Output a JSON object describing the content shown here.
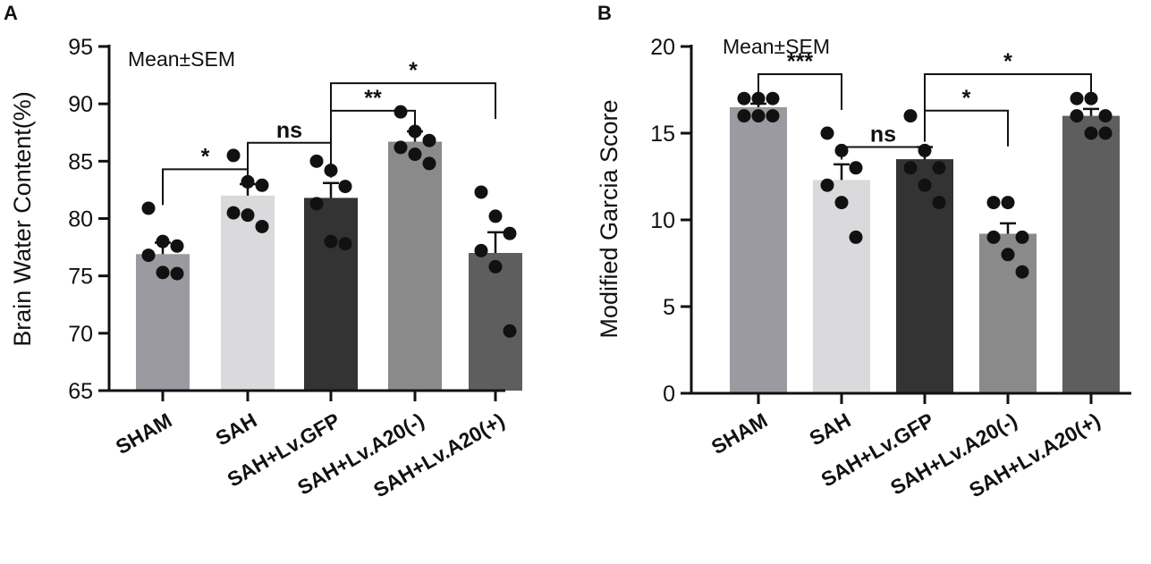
{
  "chart_data": [
    {
      "panel_label": "A",
      "type": "bar",
      "title": "",
      "annotation": "Mean±SEM",
      "xlabel": "",
      "ylabel": "Brain Water Content(%)",
      "ylim": [
        65,
        95
      ],
      "yticks": [
        65,
        70,
        75,
        80,
        85,
        90,
        95
      ],
      "categories": [
        "SHAM",
        "SAH",
        "SAH+Lv.GFP",
        "SAH+Lv.A20(-)",
        "SAH+Lv.A20(+)"
      ],
      "values": [
        76.9,
        82.0,
        81.8,
        86.7,
        77.0
      ],
      "sem": [
        1.0,
        1.0,
        1.3,
        0.9,
        1.8
      ],
      "bar_colors": [
        "#9a9aa0",
        "#dadadc",
        "#333333",
        "#8a8a8a",
        "#5e5e5e"
      ],
      "points": [
        [
          80.9,
          78.0,
          77.6,
          76.8,
          75.3,
          75.2
        ],
        [
          85.5,
          83.2,
          82.9,
          80.5,
          80.3,
          79.3
        ],
        [
          85.0,
          84.2,
          82.8,
          81.3,
          78.0,
          77.8
        ],
        [
          89.3,
          87.6,
          86.8,
          86.2,
          85.6,
          84.8
        ],
        [
          82.3,
          80.2,
          78.7,
          77.2,
          75.8,
          70.2
        ]
      ],
      "comparisons": [
        {
          "from": 0,
          "to": 1,
          "label": "*",
          "y": 84.3
        },
        {
          "from": 1,
          "to": 2,
          "label": "ns",
          "y": 86.6
        },
        {
          "from": 2,
          "to": 3,
          "label": "**",
          "y": 89.4
        },
        {
          "from": 2,
          "to": 4,
          "label": "*",
          "y": 91.8
        }
      ]
    },
    {
      "panel_label": "B",
      "type": "bar",
      "title": "",
      "annotation": "Mean±SEM",
      "xlabel": "",
      "ylabel": "Modified Garcia Score",
      "ylim": [
        0,
        20
      ],
      "yticks": [
        0,
        5,
        10,
        15,
        20
      ],
      "categories": [
        "SHAM",
        "SAH",
        "SAH+Lv.GFP",
        "SAH+Lv.A20(-)",
        "SAH+Lv.A20(+)"
      ],
      "values": [
        16.5,
        12.3,
        13.5,
        9.2,
        16.0
      ],
      "sem": [
        0.2,
        0.9,
        0.7,
        0.6,
        0.4
      ],
      "bar_colors": [
        "#9a9aa0",
        "#dadadc",
        "#333333",
        "#8a8a8a",
        "#5e5e5e"
      ],
      "points": [
        [
          17,
          17,
          17,
          16,
          16,
          16
        ],
        [
          15,
          14,
          13,
          12,
          11,
          9
        ],
        [
          16,
          14,
          13,
          13,
          12,
          11
        ],
        [
          11,
          11,
          9,
          9,
          8,
          7
        ],
        [
          17,
          17,
          16,
          16,
          15,
          15
        ]
      ],
      "comparisons": [
        {
          "from": 0,
          "to": 1,
          "label": "***",
          "y": 18.4
        },
        {
          "from": 1,
          "to": 2,
          "label": "ns",
          "y": 14.2
        },
        {
          "from": 2,
          "to": 3,
          "label": "*",
          "y": 16.3
        },
        {
          "from": 2,
          "to": 4,
          "label": "*",
          "y": 18.4
        }
      ]
    }
  ]
}
